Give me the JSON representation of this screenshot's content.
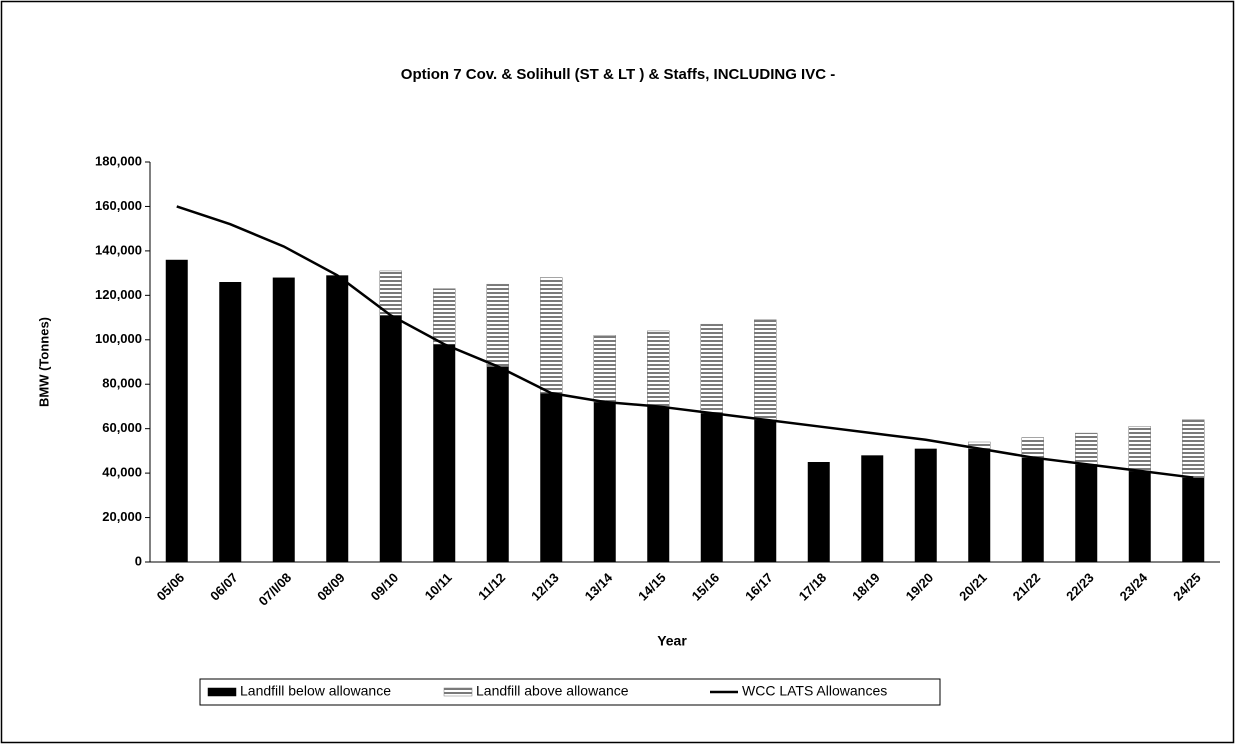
{
  "chart_data": {
    "type": "stacked-bar-line",
    "title": "Option 7  Cov. & Solihull (ST & LT )  & Staffs, INCLUDING   IVC -",
    "xlabel": "Year",
    "ylabel": "BMW (Tonnes)",
    "categories": [
      "05/06",
      "06/07",
      "07/I/08",
      "08/09",
      "09/10",
      "10/11",
      "11/12",
      "12/13",
      "13/14",
      "14/15",
      "15/16",
      "16/17",
      "17/18",
      "18/19",
      "19/20",
      "20/21",
      "21/22",
      "22/23",
      "23/24",
      "24/25"
    ],
    "series": [
      {
        "name": "Landfill below allowance",
        "color": "#000000",
        "kind": "bar",
        "values": [
          136000,
          126000,
          128000,
          129000,
          111000,
          98000,
          88000,
          76000,
          72000,
          70000,
          67000,
          64000,
          45000,
          48000,
          51000,
          51000,
          47000,
          44000,
          41000,
          38000
        ]
      },
      {
        "name": "Landfill above allowance",
        "color": "#7a7a7a",
        "kind": "hatched-bar",
        "values": [
          0,
          0,
          0,
          0,
          20000,
          25000,
          37000,
          52000,
          30000,
          34000,
          40000,
          45000,
          0,
          0,
          0,
          3000,
          9000,
          14000,
          20000,
          26000
        ]
      },
      {
        "name": "WCC  LATS Allowances",
        "color": "#000000",
        "kind": "line",
        "values": [
          160000,
          152000,
          142000,
          129000,
          111000,
          98000,
          88000,
          76000,
          72000,
          70000,
          67000,
          64000,
          61000,
          58000,
          55000,
          51000,
          47000,
          44000,
          41000,
          38000
        ]
      }
    ],
    "ylim": [
      0,
      180000
    ],
    "yticks": [
      0,
      {
        "value": 20000,
        "label": "20,000"
      },
      {
        "value": 40000,
        "label": "40,000"
      },
      {
        "value": 60000,
        "label": "60,000"
      },
      {
        "value": 80000,
        "label": "80,000"
      },
      {
        "value": 100000,
        "label": "100,000"
      },
      {
        "value": 120000,
        "label": "120,000"
      },
      {
        "value": 140000,
        "label": "140,000"
      },
      {
        "value": 160000,
        "label": "160,000"
      },
      {
        "value": 180000,
        "label": "180,000"
      }
    ],
    "grid": false
  }
}
